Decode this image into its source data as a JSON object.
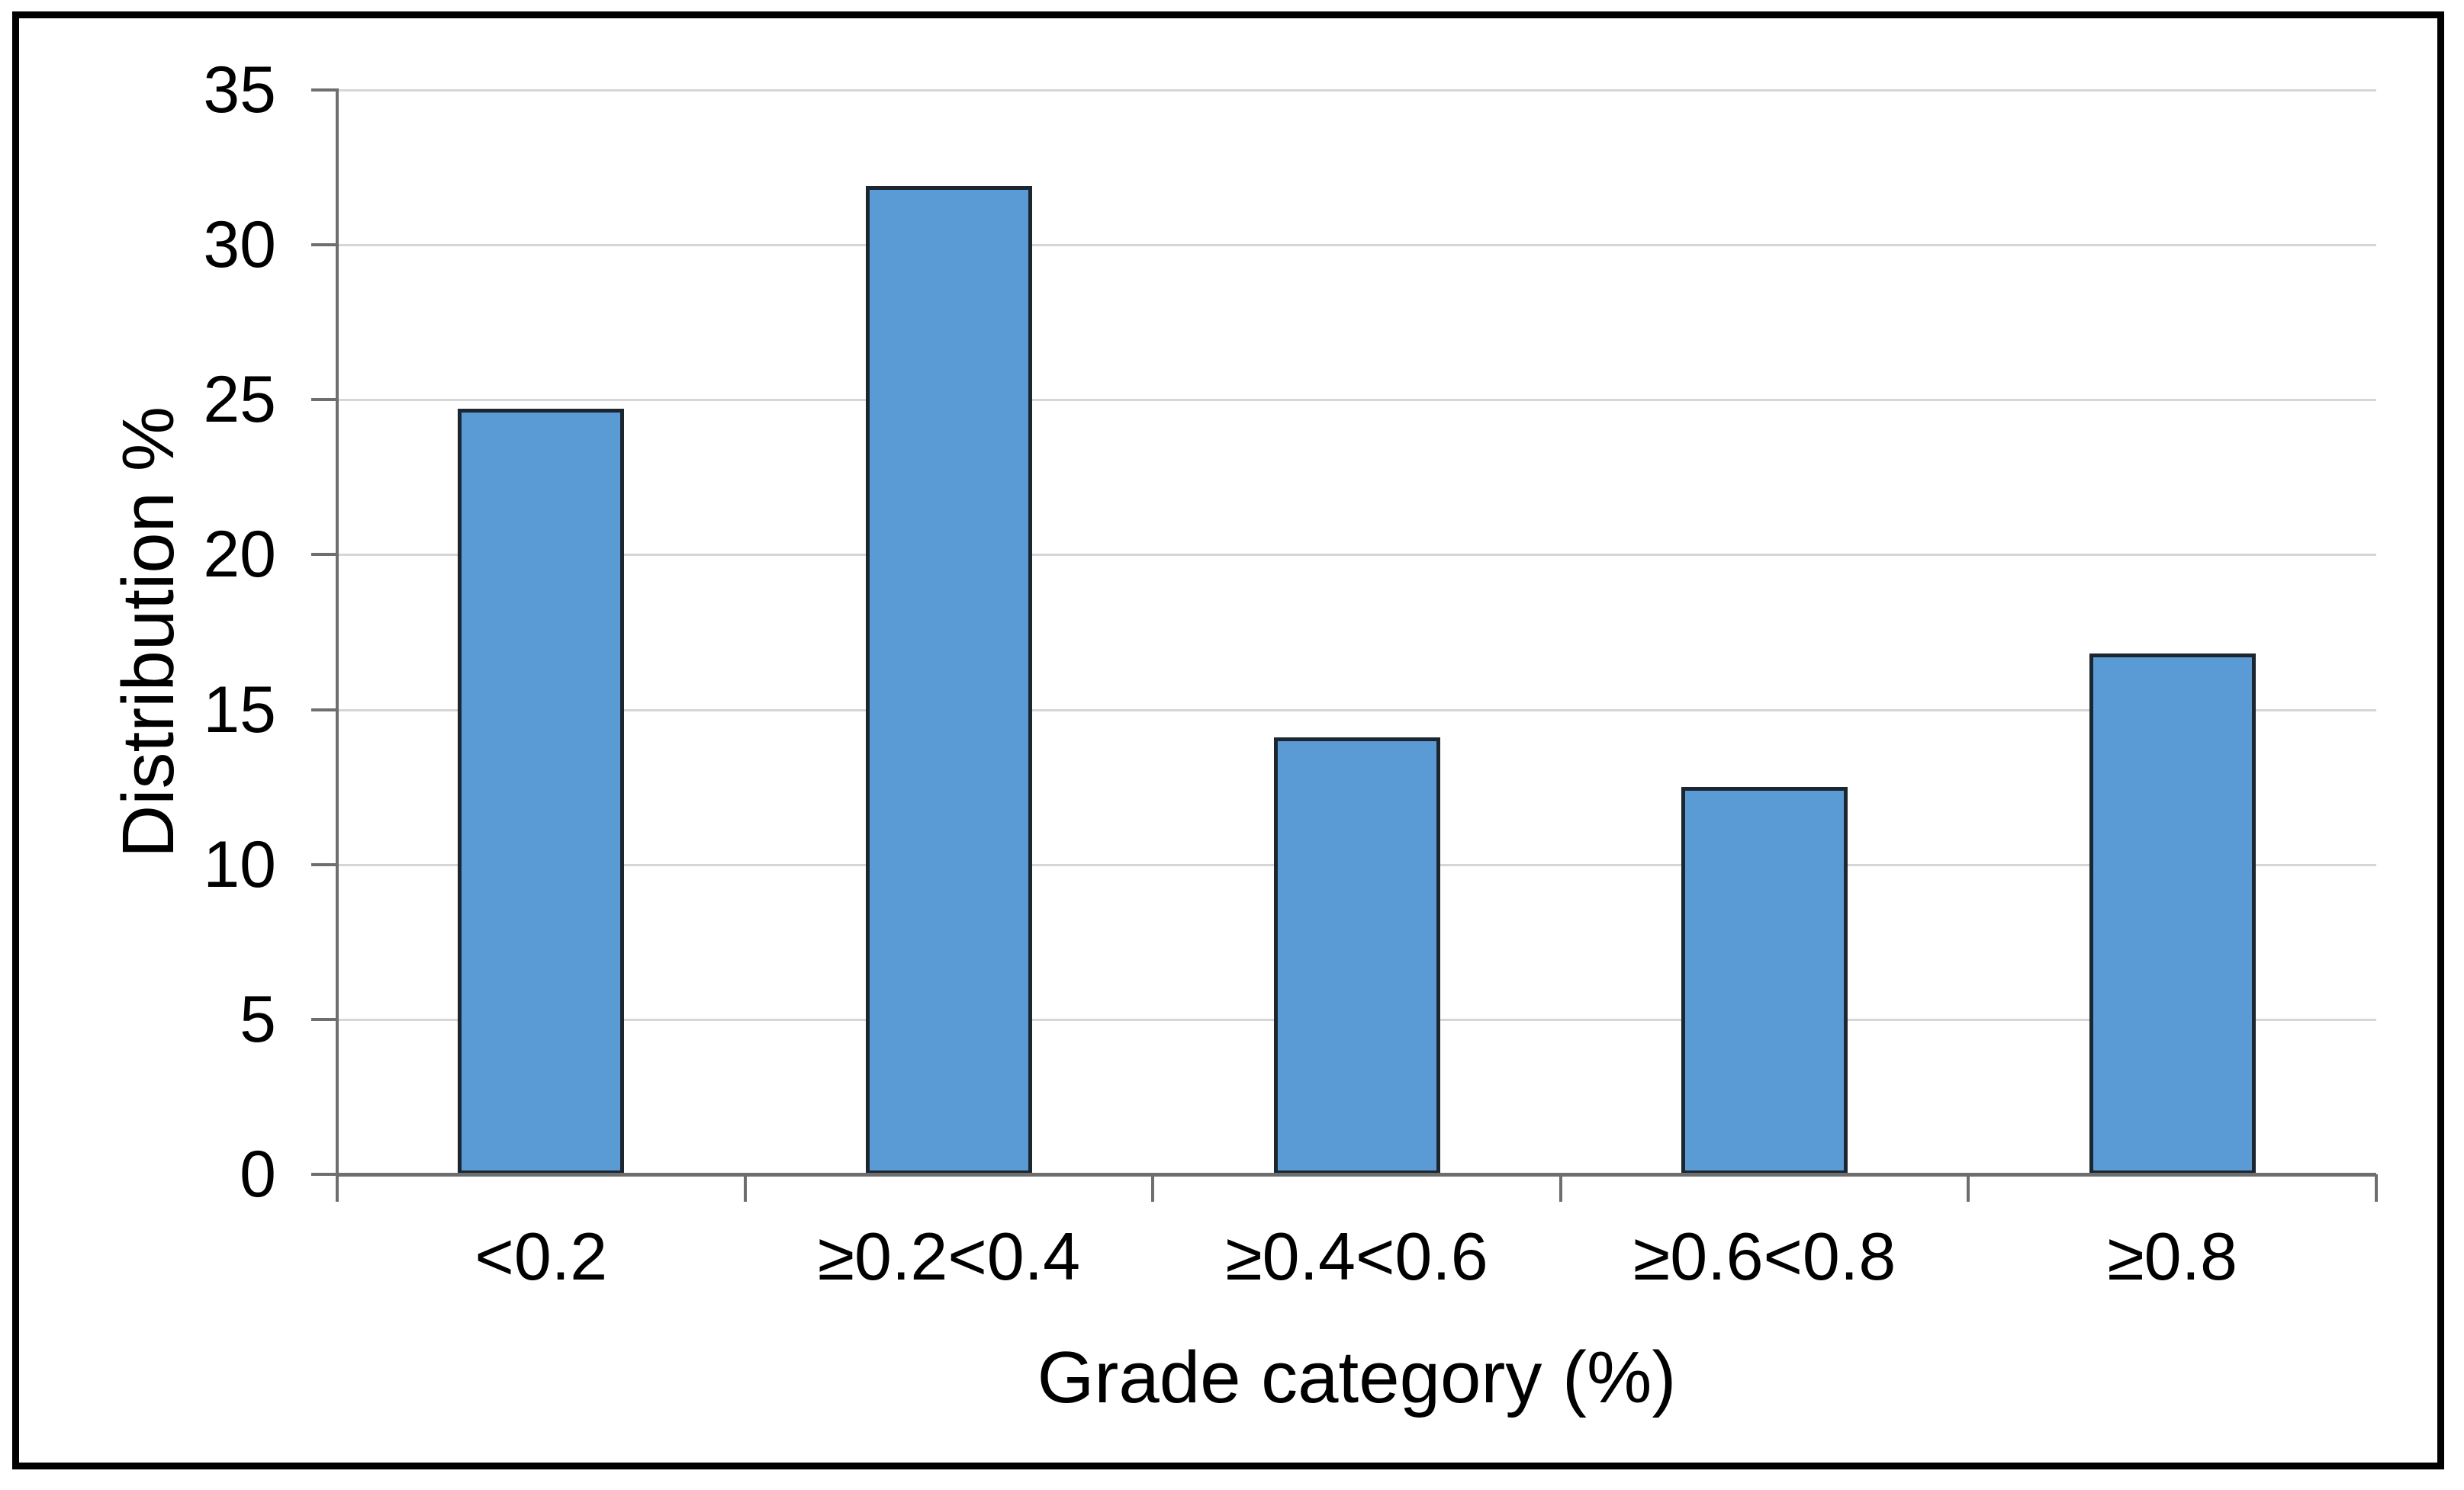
{
  "chart_data": {
    "type": "bar",
    "title": "",
    "categories": [
      "<0.2",
      "≥0.2<0.4",
      "≥0.4<0.6",
      "≥0.6<0.8",
      "≥0.8"
    ],
    "values": [
      24.7,
      31.9,
      14.1,
      12.5,
      16.8
    ],
    "xlabel": "Grade category (%)",
    "ylabel": "Distribution %",
    "ylim": [
      0,
      35
    ],
    "yticks": [
      0,
      5,
      10,
      15,
      20,
      25,
      30,
      35
    ],
    "grid": "horizontal",
    "legend": "none",
    "colors": {
      "bar_fill": "#5B9BD5",
      "bar_border": "#1C2630",
      "gridline": "#D6D6D6",
      "axis": "#6E6E6E",
      "text": "#000000",
      "frame": "#000000",
      "background": "#FFFFFF"
    }
  }
}
